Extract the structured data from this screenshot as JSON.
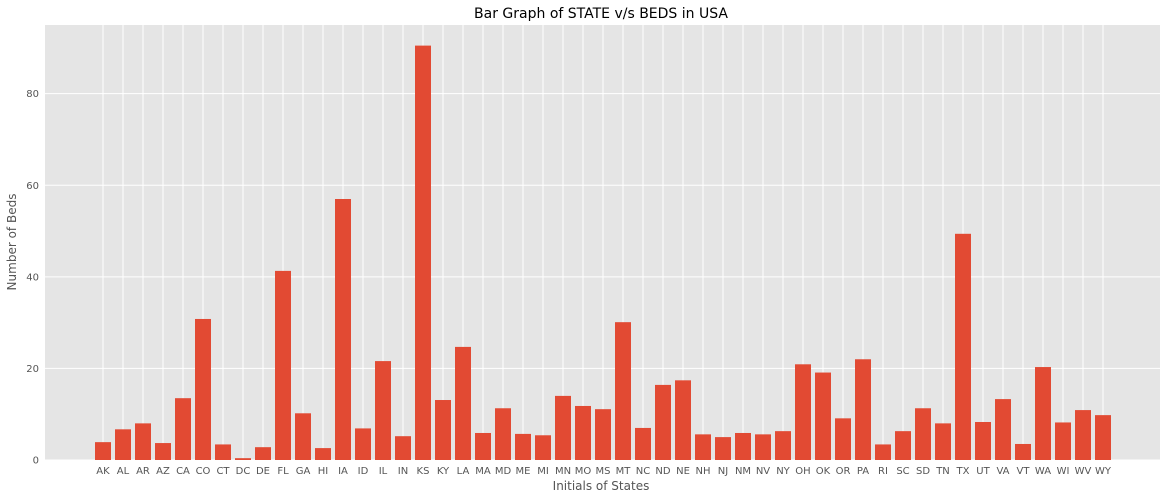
{
  "chart_data": {
    "type": "bar",
    "title": "Bar Graph of STATE v/s BEDS in USA",
    "xlabel": "Initials of States",
    "ylabel": "Number of Beds",
    "ylim": [
      0,
      95
    ],
    "yticks": [
      0,
      20,
      40,
      60,
      80
    ],
    "grid": true,
    "bar_color": "#E24A33",
    "background_color": "#E5E5E5",
    "grid_color": "#FFFFFF",
    "categories": [
      "AK",
      "AL",
      "AR",
      "AZ",
      "CA",
      "CO",
      "CT",
      "DC",
      "DE",
      "FL",
      "GA",
      "HI",
      "IA",
      "ID",
      "IL",
      "IN",
      "KS",
      "KY",
      "LA",
      "MA",
      "MD",
      "ME",
      "MI",
      "MN",
      "MO",
      "MS",
      "MT",
      "NC",
      "ND",
      "NE",
      "NH",
      "NJ",
      "NM",
      "NV",
      "NY",
      "OH",
      "OK",
      "OR",
      "PA",
      "RI",
      "SC",
      "SD",
      "TN",
      "TX",
      "UT",
      "VA",
      "VT",
      "WA",
      "WI",
      "WV",
      "WY"
    ],
    "values": [
      3.9,
      6.7,
      8.0,
      3.7,
      13.5,
      30.8,
      3.4,
      0.4,
      2.8,
      41.3,
      10.2,
      2.6,
      57.0,
      6.9,
      21.6,
      5.2,
      90.5,
      13.1,
      24.7,
      5.9,
      11.3,
      5.7,
      5.4,
      14.0,
      11.8,
      11.1,
      30.1,
      7.0,
      16.4,
      17.4,
      5.6,
      5.0,
      5.9,
      5.6,
      6.3,
      20.9,
      19.1,
      9.1,
      22.0,
      3.4,
      6.3,
      11.3,
      8.0,
      49.4,
      8.3,
      13.3,
      3.5,
      20.3,
      8.2,
      10.9,
      9.8
    ]
  }
}
